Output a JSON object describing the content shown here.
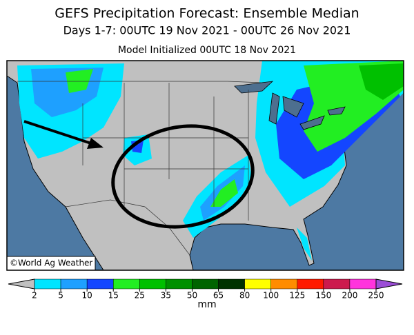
{
  "title": "GEFS Precipitation Forecast: Ensemble Median",
  "subtitle": "Days 1-7: 00UTC 19 Nov 2021 - 00UTC 26 Nov 2021",
  "initialized": "Model Initialized 00UTC 18 Nov 2021",
  "credit": "©World Ag Weather",
  "colorbar": {
    "ticks": [
      2,
      5,
      10,
      15,
      25,
      35,
      50,
      65,
      80,
      100,
      125,
      150,
      200,
      250
    ],
    "colors": [
      "#c0c0c0",
      "#00e5ff",
      "#1ea0ff",
      "#1446ff",
      "#22ee22",
      "#00c000",
      "#009000",
      "#006400",
      "#003200",
      "#ffff00",
      "#ff8c00",
      "#ff1a00",
      "#cc1a4d",
      "#ff33dd",
      "#9b4dd6",
      "#ffffff"
    ],
    "unit": "mm"
  }
}
